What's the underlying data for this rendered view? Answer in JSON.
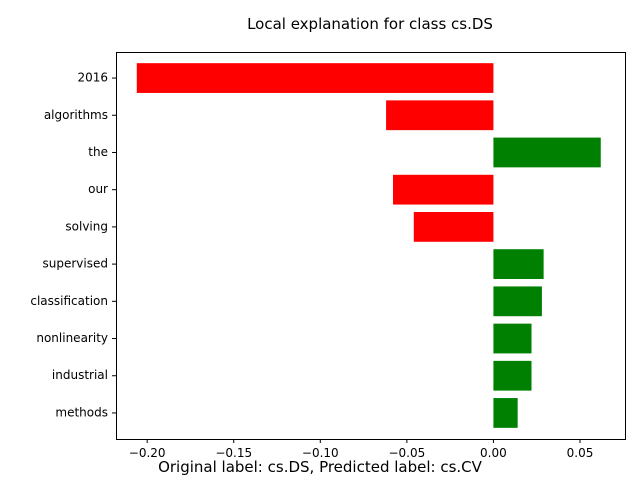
{
  "chart_data": {
    "type": "bar",
    "orientation": "horizontal",
    "title": "Local explanation for class cs.DS",
    "xlabel": "",
    "ylabel": "",
    "categories": [
      "2016",
      "algorithms",
      "the",
      "our",
      "solving",
      "supervised",
      "classification",
      "nonlinearity",
      "industrial",
      "methods"
    ],
    "values": [
      -0.206,
      -0.062,
      0.062,
      -0.058,
      -0.046,
      0.029,
      0.028,
      0.022,
      0.022,
      0.014
    ],
    "xlim": [
      -0.218,
      0.076
    ],
    "xticks": [
      -0.2,
      -0.15,
      -0.1,
      -0.05,
      0.0,
      0.05
    ],
    "xtick_labels": [
      "−0.20",
      "−0.15",
      "−0.10",
      "−0.05",
      "0.00",
      "0.05"
    ],
    "grid": false,
    "colors": {
      "positive": "#008000",
      "negative": "#ff0000"
    }
  },
  "caption": "Original label: cs.DS, Predicted label: cs.CV"
}
